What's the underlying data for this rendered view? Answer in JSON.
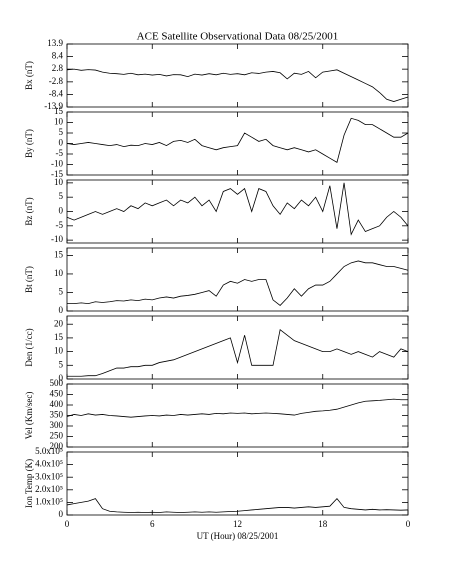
{
  "chart_data": [
    {
      "type": "line",
      "title": "ACE Satellite Observational Data  08/25/2001",
      "ylabel": "Bx (nT)",
      "color": "#000000",
      "xlim": [
        0,
        24
      ],
      "xticks": [
        0,
        6,
        12,
        18,
        24
      ],
      "ylim": [
        -13.9,
        13.9
      ],
      "yticks": [
        -13.9,
        -8.4,
        -2.8,
        2.8,
        8.4,
        13.9
      ],
      "x": [
        0,
        0.5,
        1,
        1.5,
        2,
        2.5,
        3,
        3.5,
        4,
        4.5,
        5,
        5.5,
        6,
        6.5,
        7,
        7.5,
        8,
        8.5,
        9,
        9.5,
        10,
        10.5,
        11,
        11.5,
        12,
        12.5,
        13,
        13.5,
        14,
        14.5,
        15,
        15.5,
        16,
        16.5,
        17,
        17.5,
        18,
        18.5,
        19,
        19.5,
        20,
        20.5,
        21,
        21.5,
        22,
        22.5,
        23,
        23.5,
        24
      ],
      "values": [
        2.5,
        2.8,
        2.3,
        2.6,
        2.4,
        1.5,
        1.0,
        0.8,
        0.5,
        1.0,
        0.3,
        0.6,
        0.2,
        0.5,
        -0.2,
        0.4,
        0.3,
        -0.5,
        0.6,
        0.2,
        0.8,
        0.3,
        1.0,
        0.5,
        0.8,
        0.3,
        1.2,
        0.9,
        1.5,
        1.8,
        1.2,
        -1.5,
        1.0,
        0.5,
        1.8,
        -1.0,
        1.5,
        2.0,
        2.5,
        1.0,
        -0.5,
        -2.0,
        -3.5,
        -5.0,
        -7.5,
        -10.5,
        -11.5,
        -10.5,
        -9.5
      ]
    },
    {
      "type": "line",
      "ylabel": "By (nT)",
      "color": "#000000",
      "xlim": [
        0,
        24
      ],
      "xticks": [
        0,
        6,
        12,
        18,
        24
      ],
      "ylim": [
        -15,
        15
      ],
      "yticks": [
        -15,
        -10,
        -5,
        0,
        5,
        10,
        15
      ],
      "x": [
        0,
        0.5,
        1,
        1.5,
        2,
        2.5,
        3,
        3.5,
        4,
        4.5,
        5,
        5.5,
        6,
        6.5,
        7,
        7.5,
        8,
        8.5,
        9,
        9.5,
        10,
        10.5,
        11,
        11.5,
        12,
        12.5,
        13,
        13.5,
        14,
        14.5,
        15,
        15.5,
        16,
        16.5,
        17,
        17.5,
        18,
        18.5,
        19,
        19.5,
        20,
        20.5,
        21,
        21.5,
        22,
        22.5,
        23,
        23.5,
        24
      ],
      "values": [
        0,
        -0.5,
        0,
        0.5,
        0,
        -0.5,
        -1,
        -0.5,
        -1.5,
        -0.8,
        -1,
        0,
        -0.5,
        0.5,
        -1,
        1,
        1.5,
        0.5,
        2,
        -1,
        -2,
        -3,
        -2,
        -1.5,
        -1,
        5,
        3,
        1,
        2,
        -1,
        -2,
        -3,
        -2,
        -3,
        -4,
        -3,
        -5,
        -7,
        -9,
        4,
        12,
        11,
        9,
        9,
        7,
        5,
        3,
        3,
        5
      ]
    },
    {
      "type": "line",
      "ylabel": "Bz (nT)",
      "color": "#000000",
      "xlim": [
        0,
        24
      ],
      "xticks": [
        0,
        6,
        12,
        18,
        24
      ],
      "ylim": [
        -11,
        11
      ],
      "yticks": [
        -10,
        -5,
        0,
        5,
        10
      ],
      "x": [
        0,
        0.5,
        1,
        1.5,
        2,
        2.5,
        3,
        3.5,
        4,
        4.5,
        5,
        5.5,
        6,
        6.5,
        7,
        7.5,
        8,
        8.5,
        9,
        9.5,
        10,
        10.5,
        11,
        11.5,
        12,
        12.5,
        13,
        13.5,
        14,
        14.5,
        15,
        15.5,
        16,
        16.5,
        17,
        17.5,
        18,
        18.5,
        19,
        19.5,
        20,
        20.5,
        21,
        21.5,
        22,
        22.5,
        23,
        23.5,
        24
      ],
      "values": [
        -2,
        -3,
        -2,
        -1,
        0,
        -1,
        0,
        1,
        0,
        2,
        1,
        3,
        2,
        3,
        4,
        2,
        4,
        3,
        5,
        2,
        4,
        0,
        7,
        8,
        6,
        8,
        0,
        8,
        7,
        2,
        -1,
        3,
        1,
        4,
        2,
        5,
        0,
        9,
        -6,
        10,
        -8,
        -3,
        -7,
        -6,
        -5,
        -2,
        0,
        -2,
        -5
      ]
    },
    {
      "type": "line",
      "ylabel": "Bt (nT)",
      "color": "#000000",
      "xlim": [
        0,
        24
      ],
      "xticks": [
        0,
        6,
        12,
        18,
        24
      ],
      "ylim": [
        0,
        17
      ],
      "yticks": [
        0,
        5,
        10,
        15
      ],
      "x": [
        0,
        0.5,
        1,
        1.5,
        2,
        2.5,
        3,
        3.5,
        4,
        4.5,
        5,
        5.5,
        6,
        6.5,
        7,
        7.5,
        8,
        8.5,
        9,
        9.5,
        10,
        10.5,
        11,
        11.5,
        12,
        12.5,
        13,
        13.5,
        14,
        14.5,
        15,
        15.5,
        16,
        16.5,
        17,
        17.5,
        18,
        18.5,
        19,
        19.5,
        20,
        20.5,
        21,
        21.5,
        22,
        22.5,
        23,
        23.5,
        24
      ],
      "values": [
        2,
        2,
        2.2,
        2,
        2.5,
        2.3,
        2.5,
        2.8,
        2.7,
        3,
        2.8,
        3.2,
        3,
        3.5,
        3.8,
        3.5,
        4,
        4.2,
        4.5,
        5,
        5.5,
        4,
        7,
        8,
        7.5,
        8.5,
        8,
        8.5,
        8.5,
        3,
        1.5,
        3.5,
        6,
        4,
        6,
        7,
        7,
        8,
        10,
        12,
        13,
        13.5,
        13,
        13,
        12.5,
        12,
        12,
        11.5,
        11
      ]
    },
    {
      "type": "line",
      "ylabel": "Den (1/cc)",
      "color": "#000000",
      "xlim": [
        0,
        24
      ],
      "xticks": [
        0,
        6,
        12,
        18,
        24
      ],
      "ylim": [
        0,
        23
      ],
      "yticks": [
        0,
        5,
        10,
        15,
        20
      ],
      "x": [
        0,
        0.5,
        1,
        1.5,
        2,
        2.5,
        3,
        3.5,
        4,
        4.5,
        5,
        5.5,
        6,
        6.5,
        7,
        7.5,
        8,
        8.5,
        9,
        9.5,
        10,
        10.5,
        11,
        11.5,
        12,
        12.5,
        13,
        13.5,
        14,
        14.5,
        15,
        15.5,
        16,
        16.5,
        17,
        17.5,
        18,
        18.5,
        19,
        19.5,
        20,
        20.5,
        21,
        21.5,
        22,
        22.5,
        23,
        23.5,
        24
      ],
      "values": [
        1,
        1,
        1,
        1.2,
        1.2,
        2,
        3,
        4,
        4,
        4.5,
        4.5,
        5,
        5,
        6,
        6.5,
        7,
        8,
        9,
        10,
        11,
        12,
        13,
        14,
        15,
        6,
        16,
        5,
        5,
        5,
        5,
        18,
        16,
        14,
        13,
        12,
        11,
        10,
        10,
        11,
        10,
        9,
        10,
        9,
        8,
        10,
        9,
        8,
        11,
        10
      ]
    },
    {
      "type": "line",
      "ylabel": "Vel (Km/sec)",
      "color": "#000000",
      "xlim": [
        0,
        24
      ],
      "xticks": [
        0,
        6,
        12,
        18,
        24
      ],
      "ylim": [
        200,
        500
      ],
      "yticks": [
        200,
        250,
        300,
        350,
        400,
        450,
        500
      ],
      "x": [
        0,
        0.5,
        1,
        1.5,
        2,
        2.5,
        3,
        3.5,
        4,
        4.5,
        5,
        5.5,
        6,
        6.5,
        7,
        7.5,
        8,
        8.5,
        9,
        9.5,
        10,
        10.5,
        11,
        11.5,
        12,
        12.5,
        13,
        13.5,
        14,
        14.5,
        15,
        15.5,
        16,
        16.5,
        17,
        17.5,
        18,
        18.5,
        19,
        19.5,
        20,
        20.5,
        21,
        21.5,
        22,
        22.5,
        23,
        23.5,
        24
      ],
      "values": [
        345,
        355,
        350,
        358,
        352,
        355,
        350,
        348,
        345,
        342,
        345,
        348,
        350,
        348,
        352,
        350,
        355,
        352,
        355,
        358,
        355,
        360,
        358,
        362,
        360,
        362,
        358,
        360,
        362,
        360,
        358,
        355,
        352,
        360,
        365,
        370,
        372,
        375,
        380,
        390,
        400,
        410,
        418,
        420,
        422,
        425,
        428,
        425,
        425
      ]
    },
    {
      "type": "line",
      "ylabel": "Ion Temp (K)",
      "xlabel": "UT (Hour)  08/25/2001",
      "color": "#000000",
      "xlim": [
        0,
        24
      ],
      "xticks": [
        0,
        6,
        12,
        18,
        {
          "value": 24,
          "label": "0"
        }
      ],
      "ylim": [
        0,
        500000
      ],
      "yticks": [
        0,
        {
          "value": 100000,
          "label": "1.0x10⁵"
        },
        {
          "value": 200000,
          "label": "2.0x10⁵"
        },
        {
          "value": 300000,
          "label": "3.0x10⁵"
        },
        {
          "value": 400000,
          "label": "4.0x10⁵"
        },
        {
          "value": 500000,
          "label": "5.0x10⁵"
        }
      ],
      "x": [
        0,
        0.5,
        1,
        1.5,
        2,
        2.5,
        3,
        3.5,
        4,
        4.5,
        5,
        5.5,
        6,
        6.5,
        7,
        7.5,
        8,
        8.5,
        9,
        9.5,
        10,
        10.5,
        11,
        11.5,
        12,
        12.5,
        13,
        13.5,
        14,
        14.5,
        15,
        15.5,
        16,
        16.5,
        17,
        17.5,
        18,
        18.5,
        19,
        19.5,
        20,
        20.5,
        21,
        21.5,
        22,
        22.5,
        23,
        23.5,
        24
      ],
      "values": [
        80000,
        90000,
        100000,
        110000,
        130000,
        50000,
        30000,
        25000,
        22000,
        20000,
        22000,
        20000,
        22000,
        20000,
        25000,
        22000,
        20000,
        22000,
        25000,
        22000,
        25000,
        22000,
        25000,
        28000,
        30000,
        35000,
        40000,
        45000,
        50000,
        55000,
        60000,
        60000,
        55000,
        60000,
        65000,
        60000,
        65000,
        70000,
        130000,
        60000,
        50000,
        45000,
        40000,
        45000,
        40000,
        42000,
        40000,
        38000,
        40000
      ]
    }
  ]
}
